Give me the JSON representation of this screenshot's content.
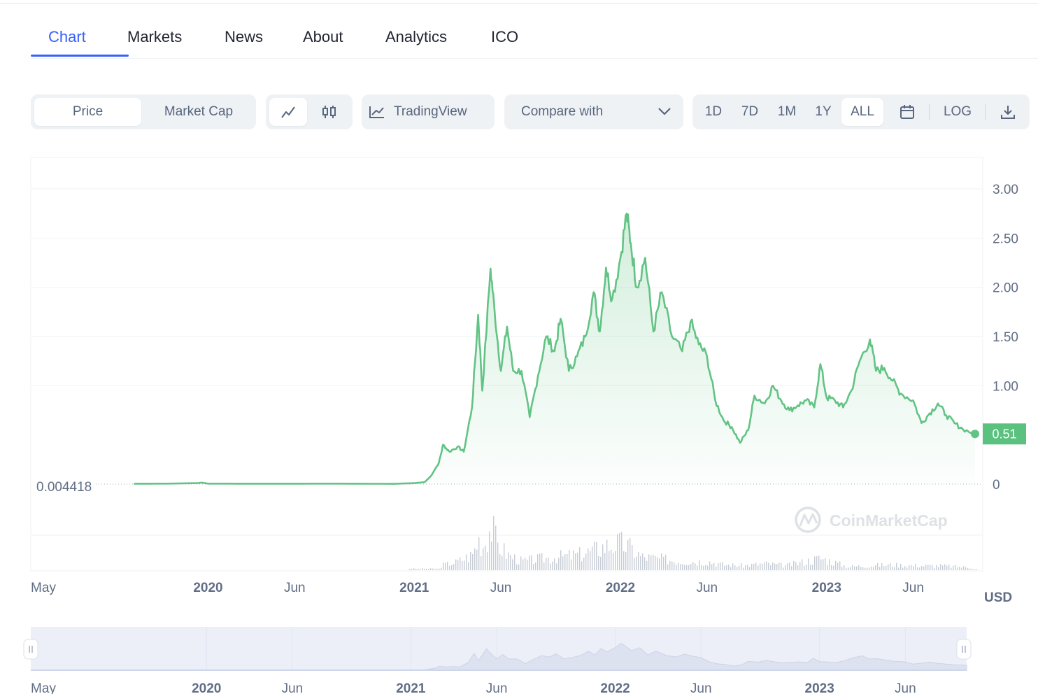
{
  "tabs": [
    {
      "label": "Chart",
      "active": true
    },
    {
      "label": "Markets"
    },
    {
      "label": "News"
    },
    {
      "label": "About"
    },
    {
      "label": "Analytics"
    },
    {
      "label": "ICO"
    }
  ],
  "toolbar": {
    "metric_options": [
      "Price",
      "Market Cap"
    ],
    "metric_selected": "Price",
    "chart_style_icons": [
      "line-chart-icon",
      "candlestick-icon"
    ],
    "tradingview_label": "TradingView",
    "compare_label": "Compare with",
    "ranges": [
      "1D",
      "7D",
      "1M",
      "1Y",
      "ALL"
    ],
    "range_selected": "ALL",
    "log_label": "LOG"
  },
  "colors": {
    "accent": "#3861fb",
    "price_line": "#62c384",
    "price_badge": "#5bc17f",
    "volume": "#c7cdd6"
  },
  "chart_data": {
    "type": "area",
    "y_ticks": [
      "3.00",
      "2.50",
      "2.00",
      "1.50",
      "1.00",
      "0"
    ],
    "ylim": [
      0,
      3.0
    ],
    "current_price_label": "0.51",
    "start_price_label": "0.004418",
    "currency_label": "USD",
    "watermark": "CoinMarketCap",
    "x_ticks": [
      {
        "label": "May",
        "t": 2019.33,
        "major": false
      },
      {
        "label": "2020",
        "t": 2020.0,
        "major": true
      },
      {
        "label": "Jun",
        "t": 2020.42,
        "major": false
      },
      {
        "label": "2021",
        "t": 2021.0,
        "major": true
      },
      {
        "label": "Jun",
        "t": 2021.42,
        "major": false
      },
      {
        "label": "2022",
        "t": 2022.0,
        "major": true
      },
      {
        "label": "Jun",
        "t": 2022.42,
        "major": false
      },
      {
        "label": "2023",
        "t": 2023.0,
        "major": true
      },
      {
        "label": "Jun",
        "t": 2023.42,
        "major": false
      }
    ],
    "navigator_ticks": [
      {
        "label": "May",
        "t": 2019.33,
        "major": false
      },
      {
        "label": "2020",
        "t": 2020.0,
        "major": true
      },
      {
        "label": "Jun",
        "t": 2020.42,
        "major": false
      },
      {
        "label": "2021",
        "t": 2021.0,
        "major": true
      },
      {
        "label": "Jun",
        "t": 2021.42,
        "major": false
      },
      {
        "label": "2022",
        "t": 2022.0,
        "major": true
      },
      {
        "label": "Jun",
        "t": 2022.42,
        "major": false
      },
      {
        "label": "2023",
        "t": 2023.0,
        "major": true
      },
      {
        "label": "Jun",
        "t": 2023.42,
        "major": false
      }
    ],
    "price_series": [
      [
        2019.64,
        0.004
      ],
      [
        2019.8,
        0.005
      ],
      [
        2019.95,
        0.01
      ],
      [
        2019.97,
        0.015
      ],
      [
        2020.0,
        0.005
      ],
      [
        2020.3,
        0.004
      ],
      [
        2020.6,
        0.005
      ],
      [
        2020.9,
        0.003
      ],
      [
        2021.0,
        0.01
      ],
      [
        2021.05,
        0.02
      ],
      [
        2021.08,
        0.08
      ],
      [
        2021.12,
        0.22
      ],
      [
        2021.14,
        0.4
      ],
      [
        2021.17,
        0.33
      ],
      [
        2021.21,
        0.38
      ],
      [
        2021.24,
        0.33
      ],
      [
        2021.28,
        0.78
      ],
      [
        2021.31,
        1.72
      ],
      [
        2021.33,
        0.95
      ],
      [
        2021.37,
        2.19
      ],
      [
        2021.39,
        1.75
      ],
      [
        2021.42,
        1.15
      ],
      [
        2021.45,
        1.6
      ],
      [
        2021.48,
        1.15
      ],
      [
        2021.52,
        1.15
      ],
      [
        2021.56,
        0.68
      ],
      [
        2021.6,
        1.1
      ],
      [
        2021.64,
        1.5
      ],
      [
        2021.68,
        1.35
      ],
      [
        2021.71,
        1.68
      ],
      [
        2021.75,
        1.15
      ],
      [
        2021.79,
        1.3
      ],
      [
        2021.83,
        1.5
      ],
      [
        2021.87,
        1.95
      ],
      [
        2021.9,
        1.55
      ],
      [
        2021.93,
        2.2
      ],
      [
        2021.96,
        1.88
      ],
      [
        2022.0,
        2.3
      ],
      [
        2022.03,
        2.75
      ],
      [
        2022.05,
        2.45
      ],
      [
        2022.08,
        2.0
      ],
      [
        2022.12,
        2.3
      ],
      [
        2022.16,
        1.55
      ],
      [
        2022.2,
        1.95
      ],
      [
        2022.25,
        1.5
      ],
      [
        2022.3,
        1.35
      ],
      [
        2022.34,
        1.65
      ],
      [
        2022.38,
        1.42
      ],
      [
        2022.42,
        1.3
      ],
      [
        2022.46,
        0.85
      ],
      [
        2022.5,
        0.65
      ],
      [
        2022.54,
        0.58
      ],
      [
        2022.58,
        0.42
      ],
      [
        2022.62,
        0.55
      ],
      [
        2022.65,
        0.9
      ],
      [
        2022.7,
        0.82
      ],
      [
        2022.74,
        1.0
      ],
      [
        2022.78,
        0.85
      ],
      [
        2022.82,
        0.75
      ],
      [
        2022.86,
        0.8
      ],
      [
        2022.9,
        0.85
      ],
      [
        2022.94,
        0.78
      ],
      [
        2022.97,
        1.22
      ],
      [
        2023.0,
        0.88
      ],
      [
        2023.04,
        0.85
      ],
      [
        2023.08,
        0.78
      ],
      [
        2023.12,
        0.95
      ],
      [
        2023.16,
        1.25
      ],
      [
        2023.21,
        1.47
      ],
      [
        2023.24,
        1.15
      ],
      [
        2023.28,
        1.18
      ],
      [
        2023.32,
        1.05
      ],
      [
        2023.36,
        0.92
      ],
      [
        2023.42,
        0.85
      ],
      [
        2023.46,
        0.62
      ],
      [
        2023.5,
        0.72
      ],
      [
        2023.54,
        0.82
      ],
      [
        2023.58,
        0.7
      ],
      [
        2023.62,
        0.62
      ],
      [
        2023.66,
        0.56
      ],
      [
        2023.72,
        0.51
      ]
    ],
    "volume_series": [
      [
        2021.12,
        0.1
      ],
      [
        2021.2,
        0.18
      ],
      [
        2021.28,
        0.35
      ],
      [
        2021.31,
        0.7
      ],
      [
        2021.33,
        0.55
      ],
      [
        2021.37,
        1.0
      ],
      [
        2021.4,
        0.6
      ],
      [
        2021.45,
        0.35
      ],
      [
        2021.52,
        0.2
      ],
      [
        2021.6,
        0.25
      ],
      [
        2021.7,
        0.3
      ],
      [
        2021.8,
        0.35
      ],
      [
        2021.87,
        0.45
      ],
      [
        2021.93,
        0.55
      ],
      [
        2022.0,
        0.6
      ],
      [
        2022.04,
        0.52
      ],
      [
        2022.1,
        0.3
      ],
      [
        2022.2,
        0.25
      ],
      [
        2022.3,
        0.2
      ],
      [
        2022.42,
        0.2
      ],
      [
        2022.5,
        0.12
      ],
      [
        2022.6,
        0.1
      ],
      [
        2022.7,
        0.15
      ],
      [
        2022.8,
        0.1
      ],
      [
        2022.97,
        0.27
      ],
      [
        2023.1,
        0.08
      ],
      [
        2023.2,
        0.1
      ],
      [
        2023.3,
        0.12
      ],
      [
        2023.45,
        0.1
      ],
      [
        2023.55,
        0.1
      ],
      [
        2023.7,
        0.06
      ]
    ]
  }
}
